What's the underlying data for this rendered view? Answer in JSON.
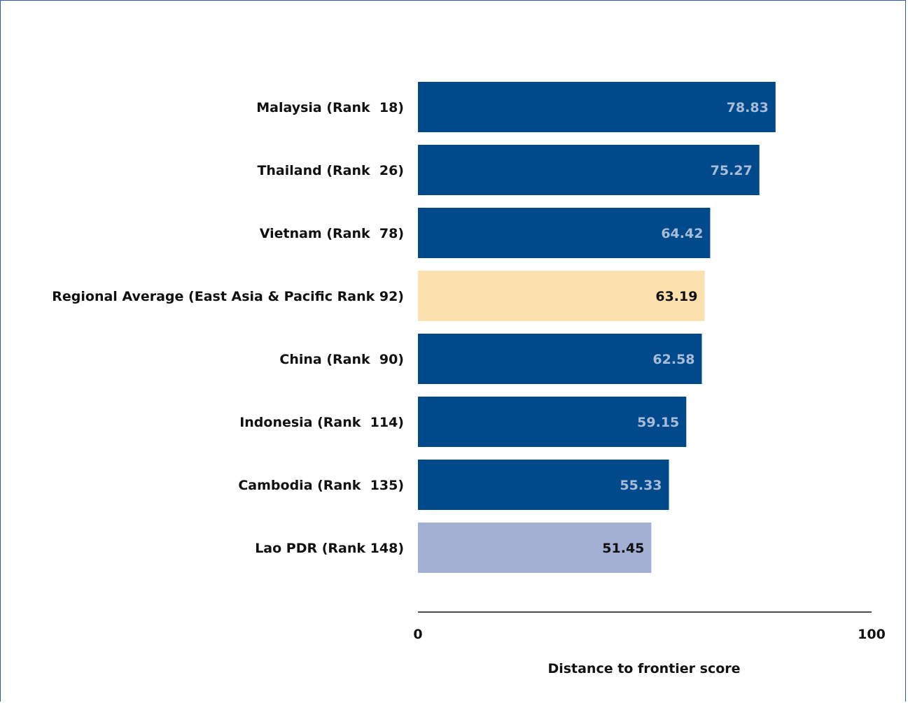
{
  "chart_data": {
    "type": "bar",
    "orientation": "horizontal",
    "categories": [
      "Malaysia (Rank  18)",
      "Thailand (Rank  26)",
      "Vietnam (Rank  78)",
      "Regional Average (East Asia & Pacific Rank 92)",
      "China (Rank  90)",
      "Indonesia (Rank  114)",
      "Cambodia (Rank  135)",
      "Lao PDR (Rank 148)"
    ],
    "values": [
      78.83,
      75.27,
      64.42,
      63.19,
      62.58,
      59.15,
      55.33,
      51.45
    ],
    "value_labels": [
      "78.83",
      "75.27",
      "64.42",
      "63.19",
      "62.58",
      "59.15",
      "55.33",
      "51.45"
    ],
    "bar_colors": [
      "#004a8c",
      "#004a8c",
      "#004a8c",
      "#fce0ae",
      "#004a8c",
      "#004a8c",
      "#004a8c",
      "#a3b0d3"
    ],
    "label_colors": [
      "#a9bcd8",
      "#a9bcd8",
      "#a9bcd8",
      "#111111",
      "#a9bcd8",
      "#a9bcd8",
      "#a9bcd8",
      "#111111"
    ],
    "xlim": [
      0,
      100
    ],
    "xticks": [
      "0",
      "100"
    ],
    "xlabel": "Distance to frontier score",
    "title": "",
    "grid": false,
    "legend": false
  },
  "colors": {
    "primary_bar": "#004a8c",
    "highlight_bar": "#fce0ae",
    "focus_bar": "#a3b0d3",
    "frame_border": "#2b5ea6"
  }
}
